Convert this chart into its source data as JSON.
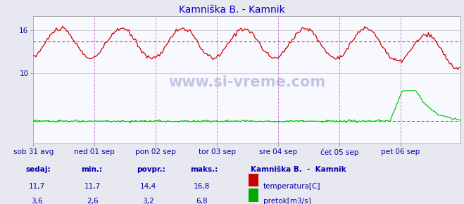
{
  "title": "Kamniška B. - Kamnik",
  "title_color": "#0000cc",
  "bg_color": "#e8e8f0",
  "plot_bg_color": "#f8f8ff",
  "grid_color": "#d0d0d0",
  "text_color": "#0000aa",
  "yticks": [
    10,
    16
  ],
  "ylim": [
    0,
    18.0
  ],
  "xlim": [
    0,
    335
  ],
  "xlabel_ticks": [
    0,
    48,
    96,
    144,
    192,
    240,
    288
  ],
  "xlabel_labels": [
    "sob 31 avg",
    "ned 01 sep",
    "pon 02 sep",
    "tor 03 sep",
    "sre 04 sep",
    "čet 05 sep",
    "pet 06 sep"
  ],
  "hline_temp_avg": 14.4,
  "hline_flow_avg": 3.2,
  "vline_positions": [
    48,
    96,
    144,
    192,
    240,
    288
  ],
  "watermark": "www.si-vreme.com",
  "legend_title": "Kamniška B.  -  Kamnik",
  "legend_items": [
    "temperatura[C]",
    "pretok[m3/s]"
  ],
  "legend_colors": [
    "#cc0000",
    "#00aa00"
  ],
  "stat_labels": [
    "sedaj:",
    "min.:",
    "povpr.:",
    "maks.:"
  ],
  "stat_temp": [
    "11,7",
    "11,7",
    "14,4",
    "16,8"
  ],
  "stat_flow": [
    "3,6",
    "2,6",
    "3,2",
    "6,8"
  ],
  "temp_seed": 10,
  "flow_seed": 10
}
